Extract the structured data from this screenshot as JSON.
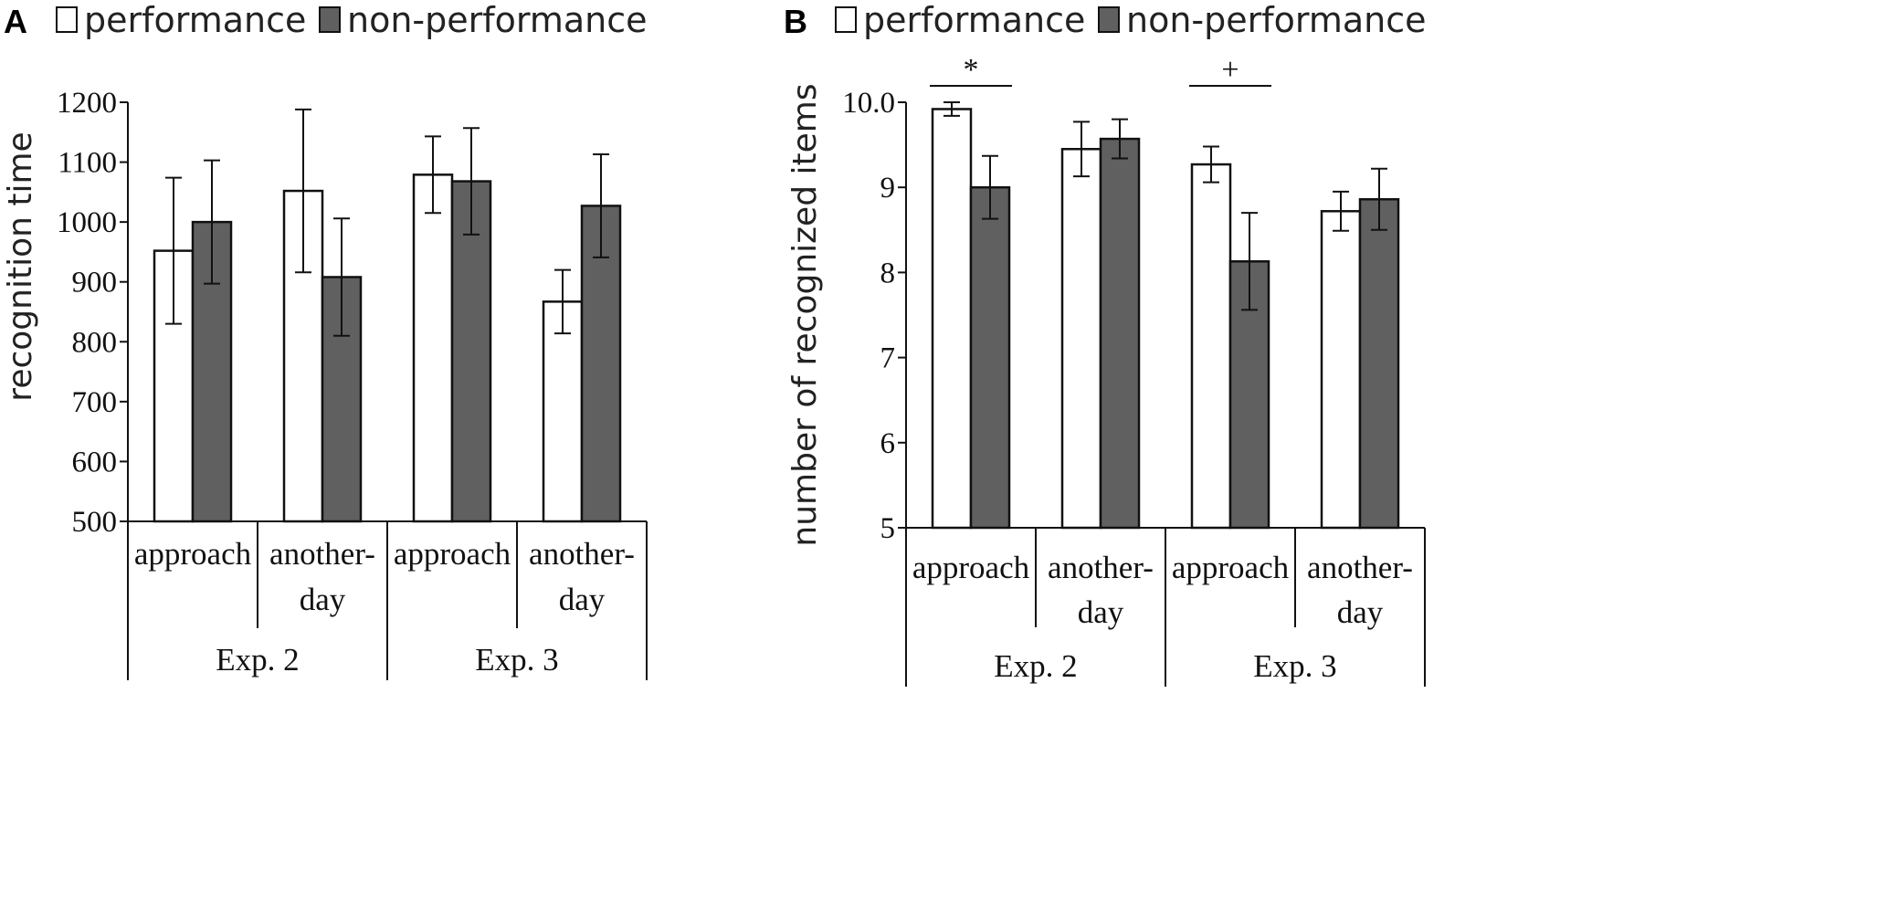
{
  "colors": {
    "performance": "#ffffff",
    "non_performance": "#606060",
    "ink": "#111111"
  },
  "chart_data": [
    {
      "panel": "A",
      "type": "bar",
      "ylabel": "recognition time",
      "ylim": [
        500,
        1200
      ],
      "yticks": [
        "500",
        "600",
        "700",
        "800",
        "900",
        "1000",
        "1100",
        "1200"
      ],
      "legend": [
        "performance",
        "non-performance"
      ],
      "groups": [
        {
          "label": "approach",
          "label_lines": [
            "approach"
          ],
          "experiment": "Exp. 2"
        },
        {
          "label": "another-day",
          "label_lines": [
            "another-",
            "day"
          ],
          "experiment": "Exp. 2"
        },
        {
          "label": "approach",
          "label_lines": [
            "approach"
          ],
          "experiment": "Exp. 3"
        },
        {
          "label": "another-day",
          "label_lines": [
            "another-",
            "day"
          ],
          "experiment": "Exp. 3"
        }
      ],
      "experiments": [
        "Exp. 2",
        "Exp. 3"
      ],
      "series": [
        {
          "name": "performance",
          "values": [
            952,
            1052,
            1079,
            867
          ],
          "errors": [
            122,
            136,
            64,
            53
          ]
        },
        {
          "name": "non-performance",
          "values": [
            1000,
            908,
            1068,
            1027
          ],
          "errors": [
            103,
            98,
            89,
            86
          ]
        }
      ],
      "significance": []
    },
    {
      "panel": "B",
      "type": "bar",
      "ylabel": "number of recognized items",
      "ylim": [
        5,
        10
      ],
      "yticks": [
        "5",
        "6",
        "7",
        "8",
        "9",
        "10.0"
      ],
      "legend": [
        "performance",
        "non-performance"
      ],
      "groups": [
        {
          "label": "approach",
          "label_lines": [
            "approach"
          ],
          "experiment": "Exp. 2"
        },
        {
          "label": "another-day",
          "label_lines": [
            "another-",
            "day"
          ],
          "experiment": "Exp. 2"
        },
        {
          "label": "approach",
          "label_lines": [
            "approach"
          ],
          "experiment": "Exp. 3"
        },
        {
          "label": "another-day",
          "label_lines": [
            "another-",
            "day"
          ],
          "experiment": "Exp. 3"
        }
      ],
      "experiments": [
        "Exp. 2",
        "Exp. 3"
      ],
      "series": [
        {
          "name": "performance",
          "values": [
            9.92,
            9.45,
            9.27,
            8.72
          ],
          "errors": [
            0.08,
            0.32,
            0.21,
            0.23
          ]
        },
        {
          "name": "non-performance",
          "values": [
            9.0,
            9.57,
            8.13,
            8.86
          ],
          "errors": [
            0.37,
            0.23,
            0.57,
            0.36
          ]
        }
      ],
      "significance": [
        {
          "group": 0,
          "marker": "*"
        },
        {
          "group": 2,
          "marker": "+"
        }
      ]
    }
  ]
}
